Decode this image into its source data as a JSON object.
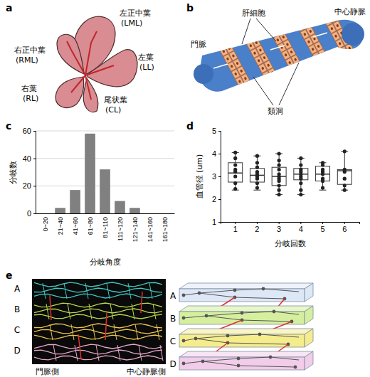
{
  "panels": [
    {
      "label": "a",
      "lobes": [
        {
          "name": "左正中葉",
          "abbr": "(LML)"
        },
        {
          "name": "右正中葉",
          "abbr": "(RML)"
        },
        {
          "name": "左葉",
          "abbr": "(LL)"
        },
        {
          "name": "右葉",
          "abbr": "(RL)"
        },
        {
          "name": "尾状葉",
          "abbr": "(CL)"
        }
      ]
    },
    {
      "label": "b",
      "hepatocyte": "肝細胞",
      "portal_vein": "門脈",
      "central_vein": "中心静脈",
      "sinusoid": "類洞"
    },
    {
      "label": "e",
      "layers": [
        "A",
        "B",
        "C",
        "D"
      ],
      "left_label": "門脈側",
      "right_label": "中心静脈側"
    }
  ],
  "chart_data": [
    {
      "type": "bar",
      "title": "c",
      "categories": [
        "0~20",
        "21~40",
        "41~60",
        "61~80",
        "81~110",
        "111~120",
        "121~140",
        "141~160",
        "161~180"
      ],
      "values": [
        0,
        4,
        17,
        58,
        32,
        9,
        4,
        0,
        0
      ],
      "color": "#808080",
      "xlabel": "分岐角度",
      "ylabel": "分岐数",
      "ylim": [
        0,
        60
      ],
      "yticks": [
        0,
        20,
        40,
        60
      ],
      "grid": true
    },
    {
      "type": "box",
      "title": "d",
      "categories": [
        "1",
        "2",
        "3",
        "4",
        "5",
        "6"
      ],
      "xlabel": "分岐回数",
      "ylabel": "血管径 (um)",
      "ylim": [
        1,
        5
      ],
      "yticks": [
        1,
        2,
        3,
        4,
        5
      ],
      "boxes": [
        {
          "min": 2.4,
          "q1": 2.75,
          "median": 3.15,
          "q3": 3.6,
          "max": 4.05,
          "points": [
            4.05,
            3.8,
            3.5,
            3.3,
            3.2,
            3.0,
            2.7,
            2.45
          ]
        },
        {
          "min": 2.4,
          "q1": 2.75,
          "median": 3.05,
          "q3": 3.35,
          "max": 3.9,
          "points": [
            3.9,
            3.6,
            3.4,
            3.2,
            3.1,
            3.0,
            2.9,
            2.7,
            2.5
          ]
        },
        {
          "min": 2.2,
          "q1": 2.6,
          "median": 3.0,
          "q3": 3.4,
          "max": 4.0,
          "points": [
            4.0,
            3.7,
            3.5,
            3.3,
            3.1,
            3.0,
            2.9,
            2.8,
            2.6,
            2.4,
            2.2
          ]
        },
        {
          "min": 2.2,
          "q1": 2.85,
          "median": 3.1,
          "q3": 3.35,
          "max": 3.8,
          "points": [
            3.8,
            3.5,
            3.3,
            3.2,
            3.1,
            3.0,
            2.9,
            2.7,
            2.4,
            2.2
          ]
        },
        {
          "min": 2.4,
          "q1": 2.8,
          "median": 3.1,
          "q3": 3.45,
          "max": 3.6,
          "points": [
            3.6,
            3.5,
            3.3,
            3.2,
            3.1,
            2.9,
            2.8,
            2.5
          ]
        },
        {
          "min": 2.4,
          "q1": 2.65,
          "median": 3.25,
          "q3": 3.3,
          "max": 4.1,
          "points": [
            4.1,
            3.3,
            3.2,
            2.9,
            2.6,
            2.4
          ]
        }
      ]
    }
  ]
}
